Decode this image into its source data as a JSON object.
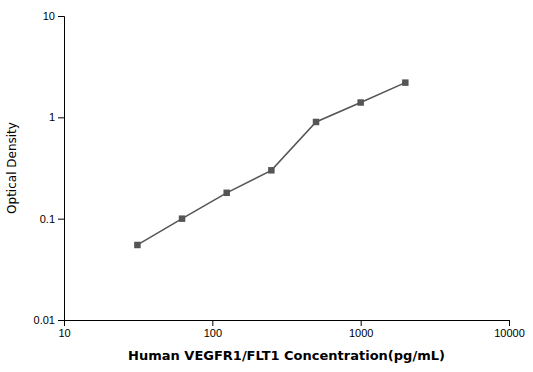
{
  "chart_data": {
    "type": "line",
    "x": [
      31.25,
      62.5,
      125,
      250,
      500,
      1000,
      2000
    ],
    "values": [
      0.055,
      0.1,
      0.18,
      0.3,
      0.9,
      1.4,
      2.2
    ],
    "xlabel": "Human VEGFR1/FLT1 Concentration(pg/mL)",
    "ylabel": "Optical Density",
    "xlim": [
      10,
      10000
    ],
    "ylim": [
      0.01,
      10
    ],
    "xticks": [
      10,
      100,
      1000,
      10000
    ],
    "yticks": [
      0.01,
      0.1,
      1,
      10
    ],
    "log": true,
    "color": "#555555",
    "marker": "square",
    "line_style": "solid"
  }
}
